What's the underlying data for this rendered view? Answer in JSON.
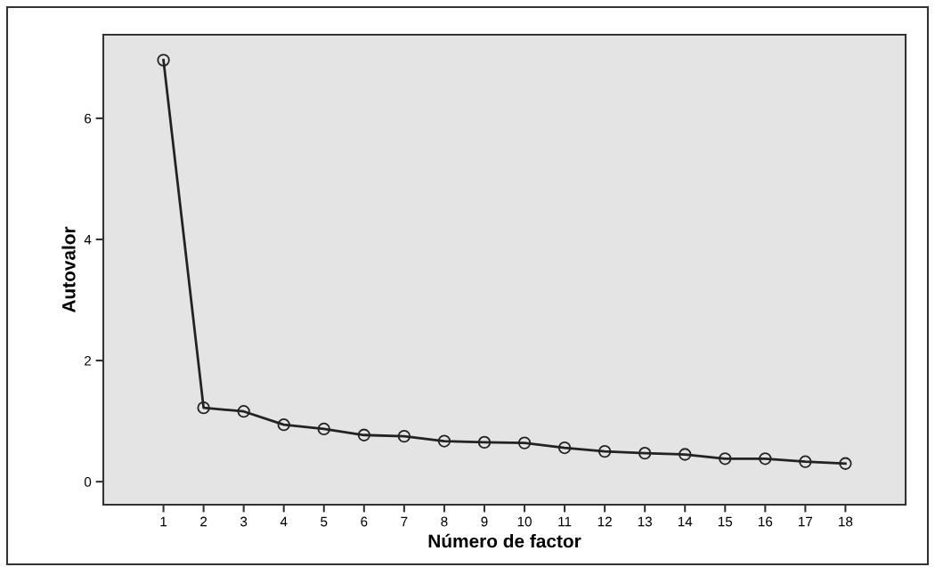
{
  "chart_data": {
    "type": "line",
    "xlabel": "Número de factor",
    "ylabel": "Autovalor",
    "x": [
      1,
      2,
      3,
      4,
      5,
      6,
      7,
      8,
      9,
      10,
      11,
      12,
      13,
      14,
      15,
      16,
      17,
      18
    ],
    "values": [
      6.96,
      1.22,
      1.16,
      0.94,
      0.87,
      0.77,
      0.75,
      0.67,
      0.65,
      0.64,
      0.56,
      0.5,
      0.47,
      0.45,
      0.38,
      0.38,
      0.33,
      0.3
    ],
    "color": "#222222",
    "marker": "circle",
    "line_style": "solid",
    "grid": false,
    "xlim": [
      -0.5,
      19.5
    ],
    "xticks": [
      1,
      2,
      3,
      4,
      5,
      6,
      7,
      8,
      9,
      10,
      11,
      12,
      13,
      14,
      15,
      16,
      17,
      18
    ],
    "ylim": [
      -0.38,
      7.38
    ],
    "yticks": [
      0,
      2,
      4,
      6
    ]
  }
}
